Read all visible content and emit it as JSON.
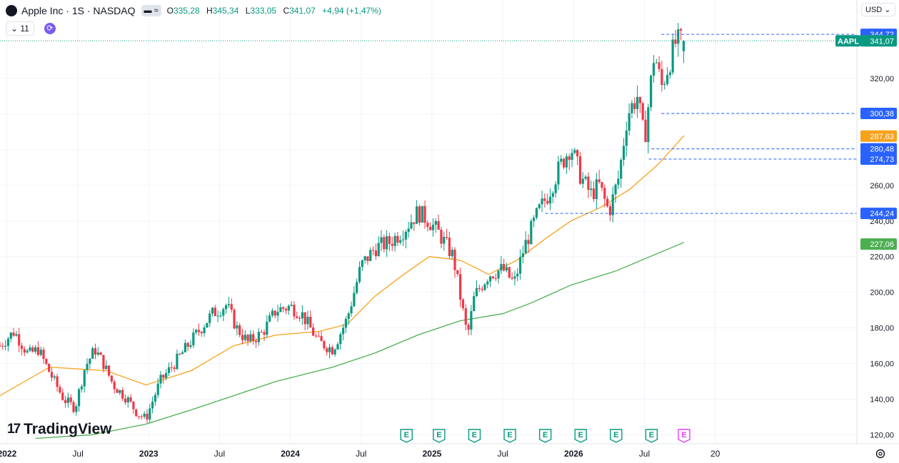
{
  "header": {
    "symbol_title": "Apple Inc · 1S · NASDAQ",
    "logo_glyph": "",
    "pill_glyphs": "▬ ≈",
    "open_label": "O",
    "open": "335,28",
    "high_label": "H",
    "high": "345,34",
    "low_label": "L",
    "low": "333,05",
    "close_label": "C",
    "close": "341,07",
    "change": "+4,94 (+1,47%)",
    "indicator_count": "11",
    "currency": "USD"
  },
  "branding": {
    "logo_text": "TradingView",
    "logo_mark": "17"
  },
  "colors": {
    "up": "#089981",
    "down": "#f23645",
    "ma_fast": "#f7a21b",
    "ma_slow": "#4caf50",
    "label_blue": "#2962ff",
    "bg": "#ffffff"
  },
  "chart_data": {
    "type": "candlestick",
    "y_range": [
      115,
      352
    ],
    "x_range": [
      2021.95,
      2028.0
    ],
    "y_ticks": [
      "120,00",
      "140,00",
      "160,00",
      "180,00",
      "200,00",
      "220,00",
      "240,00",
      "260,00",
      "280,00",
      "300,00",
      "320,00"
    ],
    "x_ticks": [
      {
        "label": "2022",
        "t": 2022.0
      },
      {
        "label": "Jul",
        "t": 2022.5
      },
      {
        "label": "2023",
        "t": 2023.0
      },
      {
        "label": "Jul",
        "t": 2023.5
      },
      {
        "label": "2024",
        "t": 2024.0
      },
      {
        "label": "Jul",
        "t": 2024.5
      },
      {
        "label": "2025",
        "t": 2025.0
      },
      {
        "label": "Jul",
        "t": 2025.5
      },
      {
        "label": "2026",
        "t": 2026.0
      },
      {
        "label": "Jul",
        "t": 2026.5
      },
      {
        "label": "20",
        "t": 2027.0
      }
    ],
    "key_points": [
      [
        2021.95,
        170
      ],
      [
        2022.05,
        178
      ],
      [
        2022.15,
        165
      ],
      [
        2022.22,
        168
      ],
      [
        2022.3,
        155
      ],
      [
        2022.4,
        140
      ],
      [
        2022.48,
        135
      ],
      [
        2022.55,
        158
      ],
      [
        2022.62,
        168
      ],
      [
        2022.68,
        160
      ],
      [
        2022.75,
        148
      ],
      [
        2022.85,
        140
      ],
      [
        2022.92,
        132
      ],
      [
        2022.98,
        129
      ],
      [
        2023.08,
        150
      ],
      [
        2023.2,
        162
      ],
      [
        2023.35,
        178
      ],
      [
        2023.45,
        188
      ],
      [
        2023.55,
        193
      ],
      [
        2023.62,
        180
      ],
      [
        2023.7,
        172
      ],
      [
        2023.8,
        177
      ],
      [
        2023.9,
        190
      ],
      [
        2024.0,
        192
      ],
      [
        2024.08,
        188
      ],
      [
        2024.2,
        172
      ],
      [
        2024.3,
        168
      ],
      [
        2024.4,
        185
      ],
      [
        2024.5,
        215
      ],
      [
        2024.6,
        225
      ],
      [
        2024.7,
        228
      ],
      [
        2024.8,
        235
      ],
      [
        2024.9,
        245
      ],
      [
        2024.98,
        240
      ],
      [
        2025.05,
        233
      ],
      [
        2025.15,
        220
      ],
      [
        2025.25,
        175
      ],
      [
        2025.3,
        198
      ],
      [
        2025.4,
        210
      ],
      [
        2025.5,
        213
      ],
      [
        2025.58,
        205
      ],
      [
        2025.65,
        225
      ],
      [
        2025.75,
        245
      ],
      [
        2025.82,
        255
      ],
      [
        2025.9,
        270
      ],
      [
        2025.98,
        282
      ],
      [
        2026.05,
        265
      ],
      [
        2026.12,
        255
      ],
      [
        2026.18,
        260
      ],
      [
        2026.25,
        245
      ],
      [
        2026.32,
        265
      ],
      [
        2026.38,
        300
      ],
      [
        2026.45,
        310
      ],
      [
        2026.5,
        285
      ],
      [
        2026.57,
        335
      ],
      [
        2026.62,
        315
      ],
      [
        2026.72,
        340
      ],
      [
        2026.78,
        341
      ]
    ],
    "last_date": 2026.78,
    "last_close": 341.07,
    "ohlc_last": {
      "open": 335.28,
      "high": 345.34,
      "low": 333.05,
      "close": 341.07
    },
    "series": [
      {
        "type": "moving-average",
        "color": "#f7a21b",
        "points": [
          [
            2021.95,
            142
          ],
          [
            2022.3,
            158
          ],
          [
            2022.7,
            156
          ],
          [
            2022.98,
            148
          ],
          [
            2023.3,
            156
          ],
          [
            2023.6,
            170
          ],
          [
            2023.9,
            176
          ],
          [
            2024.2,
            178
          ],
          [
            2024.4,
            182
          ],
          [
            2024.6,
            198
          ],
          [
            2024.8,
            210
          ],
          [
            2024.98,
            220
          ],
          [
            2025.2,
            218
          ],
          [
            2025.4,
            210
          ],
          [
            2025.6,
            218
          ],
          [
            2025.8,
            230
          ],
          [
            2025.98,
            240
          ],
          [
            2026.2,
            248
          ],
          [
            2026.4,
            258
          ],
          [
            2026.6,
            272
          ],
          [
            2026.78,
            288
          ]
        ]
      },
      {
        "type": "moving-average",
        "color": "#4caf50",
        "points": [
          [
            2022.2,
            118
          ],
          [
            2022.6,
            120
          ],
          [
            2022.98,
            126
          ],
          [
            2023.3,
            134
          ],
          [
            2023.6,
            142
          ],
          [
            2023.9,
            150
          ],
          [
            2024.3,
            158
          ],
          [
            2024.6,
            166
          ],
          [
            2024.9,
            176
          ],
          [
            2025.2,
            184
          ],
          [
            2025.5,
            188
          ],
          [
            2025.7,
            194
          ],
          [
            2025.98,
            204
          ],
          [
            2026.3,
            212
          ],
          [
            2026.6,
            222
          ],
          [
            2026.78,
            228
          ]
        ]
      }
    ],
    "price_labels": [
      {
        "value": 344.72,
        "text": "344,72",
        "color": "#2962ff",
        "line": "dashed",
        "from": 2026.62
      },
      {
        "value": 341.07,
        "text": "341,07",
        "color": "#089981",
        "line": "dotted",
        "prefix": "AAPL"
      },
      {
        "value": 300.38,
        "text": "300,38",
        "color": "#2962ff",
        "line": "dashed",
        "from": 2026.62
      },
      {
        "value": 287.63,
        "text": "287,63",
        "color": "#f7a21b",
        "line": "none"
      },
      {
        "value": 280.48,
        "text": "280,48",
        "color": "#2962ff",
        "line": "dashed",
        "from": 2026.55
      },
      {
        "value": 274.73,
        "text": "274,73",
        "color": "#2962ff",
        "line": "dashed",
        "from": 2026.53
      },
      {
        "value": 244.24,
        "text": "244,24",
        "color": "#2962ff",
        "line": "dashed",
        "from": 2025.8
      },
      {
        "value": 227.06,
        "text": "227,06",
        "color": "#4caf50",
        "line": "none"
      }
    ],
    "earnings_markers": [
      {
        "t": 2024.82,
        "label": "E"
      },
      {
        "t": 2025.05,
        "label": "E"
      },
      {
        "t": 2025.3,
        "label": "E"
      },
      {
        "t": 2025.55,
        "label": "E"
      },
      {
        "t": 2025.8,
        "label": "E"
      },
      {
        "t": 2026.05,
        "label": "E"
      },
      {
        "t": 2026.3,
        "label": "E"
      },
      {
        "t": 2026.55,
        "label": "E"
      },
      {
        "t": 2026.78,
        "label": "E",
        "upcoming": true
      }
    ],
    "grid": true,
    "axis_position": "right"
  }
}
